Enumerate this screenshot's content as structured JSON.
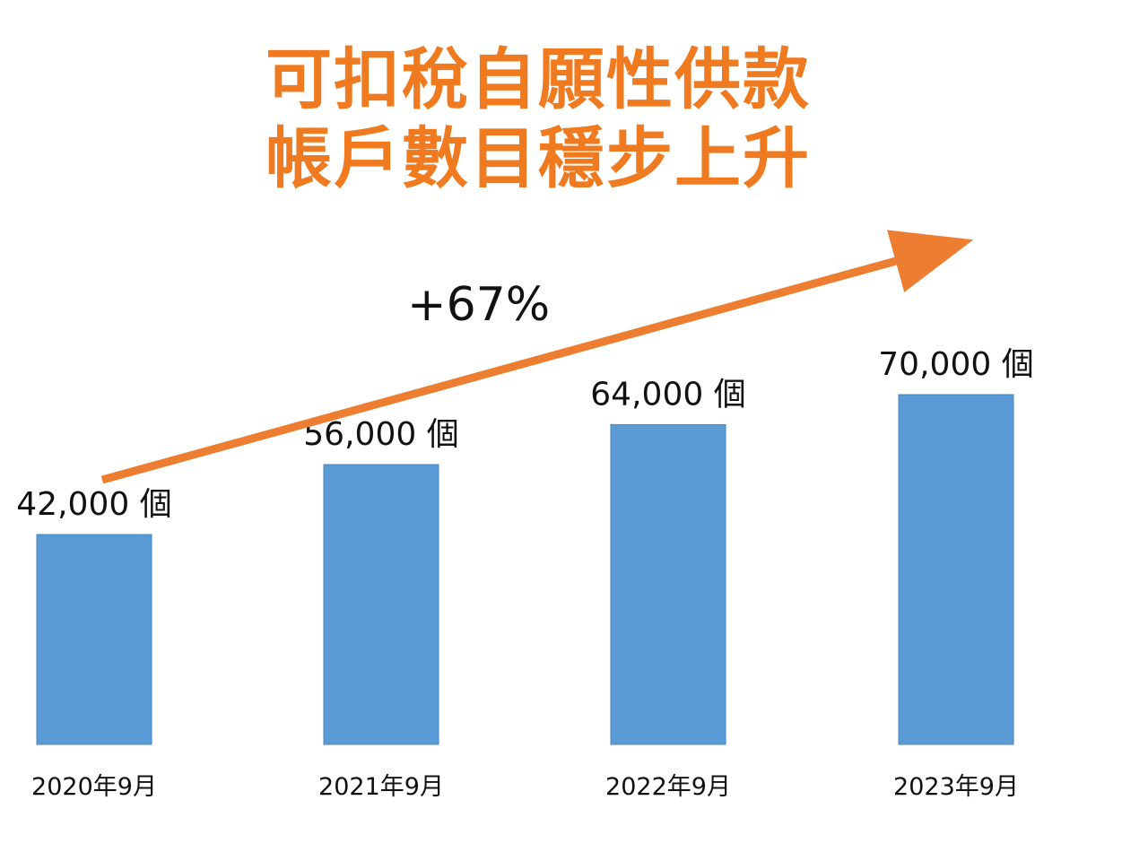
{
  "title": {
    "line1": "可扣稅自願性供款",
    "line2": "帳戶數目穩步上升",
    "color": "#F07A1F"
  },
  "growth_label": "+67%",
  "colors": {
    "bar": "#5B9BD5",
    "bar_edge": "#4A86BE",
    "arrow": "#ED7D31",
    "text": "#111111"
  },
  "chart_data": {
    "type": "bar",
    "title": "可扣稅自願性供款帳戶數目穩步上升",
    "categories": [
      "2020年9月",
      "2021年9月",
      "2022年9月",
      "2023年9月"
    ],
    "values": [
      42000,
      56000,
      64000,
      70000
    ],
    "data_labels": [
      "42,000 個",
      "56,000 個",
      "64,000 個",
      "70,000 個"
    ],
    "annotation": "+67%",
    "xlabel": "",
    "ylabel": "",
    "grid": false,
    "legend": "none"
  }
}
